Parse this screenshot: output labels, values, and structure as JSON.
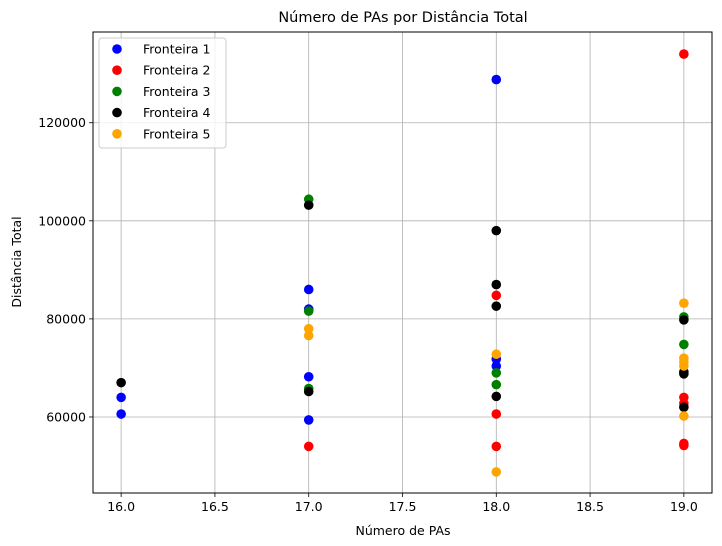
{
  "chart_data": {
    "type": "scatter",
    "title": "Número de PAs por Distância Total",
    "xlabel": "Número de PAs",
    "ylabel": "Distância Total",
    "xlim": [
      15.85,
      19.15
    ],
    "ylim": [
      44500,
      138500
    ],
    "xticks": [
      16.0,
      16.5,
      17.0,
      17.5,
      18.0,
      18.5,
      19.0
    ],
    "xtick_labels": [
      "16.0",
      "16.5",
      "17.0",
      "17.5",
      "18.0",
      "18.5",
      "19.0"
    ],
    "yticks": [
      60000,
      80000,
      100000,
      120000
    ],
    "ytick_labels": [
      "60000",
      "80000",
      "100000",
      "120000"
    ],
    "grid": true,
    "legend_position": "top-left",
    "series": [
      {
        "name": "Fronteira 1",
        "color": "#0000ff",
        "points": [
          [
            16,
            64000
          ],
          [
            16,
            60600
          ],
          [
            17,
            86000
          ],
          [
            17,
            82000
          ],
          [
            17,
            68200
          ],
          [
            17,
            59400
          ],
          [
            18,
            128800
          ],
          [
            18,
            71800
          ],
          [
            18,
            70400
          ]
        ]
      },
      {
        "name": "Fronteira 2",
        "color": "#ff0000",
        "points": [
          [
            17,
            54000
          ],
          [
            18,
            84800
          ],
          [
            18,
            60600
          ],
          [
            18,
            54000
          ],
          [
            19,
            134000
          ],
          [
            19,
            64000
          ],
          [
            19,
            62800
          ],
          [
            19,
            54600
          ],
          [
            19,
            54200
          ]
        ]
      },
      {
        "name": "Fronteira 3",
        "color": "#008000",
        "points": [
          [
            17,
            104400
          ],
          [
            17,
            81600
          ],
          [
            17,
            65800
          ],
          [
            18,
            69000
          ],
          [
            18,
            66600
          ],
          [
            19,
            80400
          ],
          [
            19,
            74800
          ]
        ]
      },
      {
        "name": "Fronteira 4",
        "color": "#000000",
        "points": [
          [
            16,
            67000
          ],
          [
            17,
            103200
          ],
          [
            17,
            65200
          ],
          [
            18,
            98000
          ],
          [
            18,
            87000
          ],
          [
            18,
            82600
          ],
          [
            18,
            64200
          ],
          [
            19,
            79800
          ],
          [
            19,
            69200
          ],
          [
            19,
            68800
          ],
          [
            19,
            62000
          ]
        ]
      },
      {
        "name": "Fronteira 5",
        "color": "#ffa500",
        "points": [
          [
            17,
            78000
          ],
          [
            17,
            76600
          ],
          [
            18,
            72800
          ],
          [
            18,
            48800
          ],
          [
            19,
            83200
          ],
          [
            19,
            72000
          ],
          [
            19,
            71200
          ],
          [
            19,
            70400
          ],
          [
            19,
            60200
          ]
        ]
      }
    ]
  }
}
